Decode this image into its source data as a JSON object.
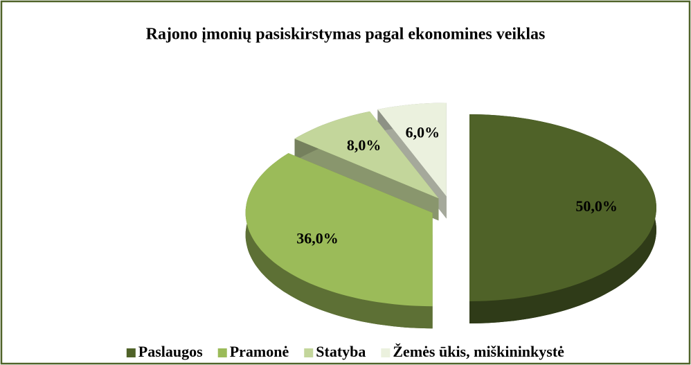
{
  "chart_data": {
    "type": "pie",
    "title": "Rajono įmonių pasiskirstymas pagal ekonomines veiklas",
    "categories": [
      "Paslaugos",
      "Pramonė",
      "Statyba",
      "Žemės ūkis, miškininkystė"
    ],
    "values": [
      50,
      36,
      8,
      6
    ],
    "value_labels": [
      "50,0%",
      "36,0%",
      "8,0%",
      "6,0%"
    ],
    "colors": [
      "#4f6228",
      "#9bbb59",
      "#c3d69b",
      "#ebf1de"
    ],
    "legend": "bottom"
  }
}
